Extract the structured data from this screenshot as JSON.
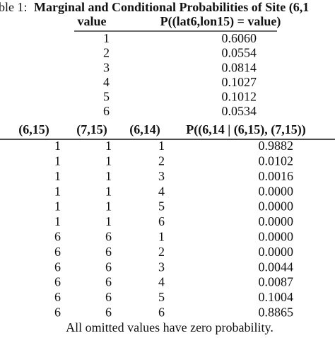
{
  "caption": {
    "label": "ble 1:",
    "title": "Marginal and Conditional Probabilities of Site (6,1"
  },
  "marginal": {
    "headers": [
      "value",
      "P((lat6,lon15) = value)"
    ],
    "rows": [
      [
        "1",
        "0.6060"
      ],
      [
        "2",
        "0.0554"
      ],
      [
        "3",
        "0.0814"
      ],
      [
        "4",
        "0.1027"
      ],
      [
        "5",
        "0.1012"
      ],
      [
        "6",
        "0.0534"
      ]
    ]
  },
  "conditional": {
    "headers": [
      "(6,15)",
      "(7,15)",
      "(6,14)",
      "P((6,14 | (6,15), (7,15))"
    ],
    "rows": [
      [
        "1",
        "1",
        "1",
        "0.9882"
      ],
      [
        "1",
        "1",
        "2",
        "0.0102"
      ],
      [
        "1",
        "1",
        "3",
        "0.0016"
      ],
      [
        "1",
        "1",
        "4",
        "0.0000"
      ],
      [
        "1",
        "1",
        "5",
        "0.0000"
      ],
      [
        "1",
        "1",
        "6",
        "0.0000"
      ],
      [
        "6",
        "6",
        "1",
        "0.0000"
      ],
      [
        "6",
        "6",
        "2",
        "0.0000"
      ],
      [
        "6",
        "6",
        "3",
        "0.0044"
      ],
      [
        "6",
        "6",
        "4",
        "0.0087"
      ],
      [
        "6",
        "6",
        "5",
        "0.1004"
      ],
      [
        "6",
        "6",
        "6",
        "0.8865"
      ]
    ]
  },
  "footnote": "All omitted values have zero probability."
}
